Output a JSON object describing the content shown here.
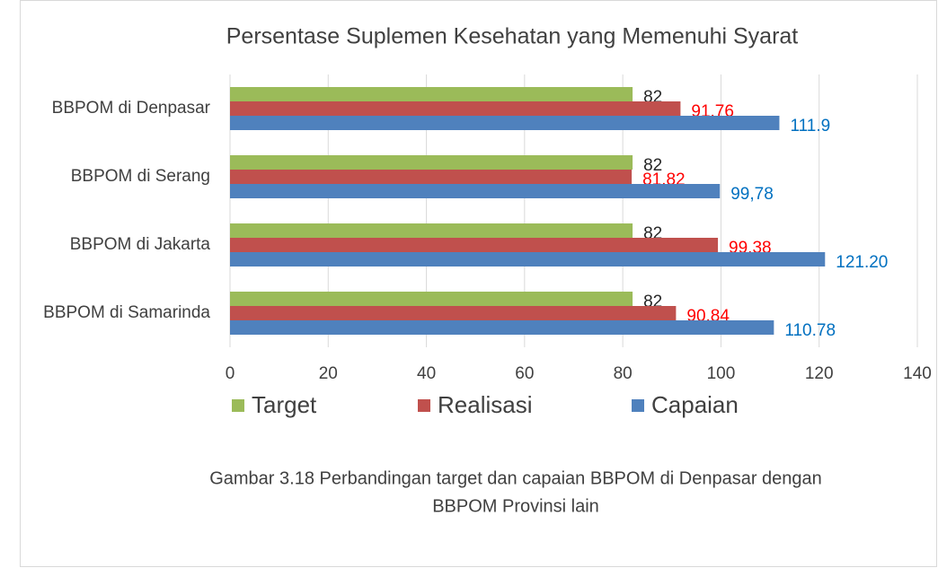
{
  "chart_data": {
    "type": "hbar",
    "title": "Persentase Suplemen Kesehatan yang Memenuhi Syarat",
    "categories": [
      "BBPOM di Denpasar",
      "BBPOM di Serang",
      "BBPOM di Jakarta",
      "BBPOM di Samarinda"
    ],
    "series": [
      {
        "name": "Target",
        "color": "#9bbb59",
        "label_color": "#262626",
        "values": [
          82,
          82,
          82,
          82
        ]
      },
      {
        "name": "Realisasi",
        "color": "#c0504d",
        "label_color": "#ff0000",
        "values": [
          91.76,
          81.82,
          99.38,
          90.84
        ]
      },
      {
        "name": "Capaian",
        "color": "#4f81bd",
        "label_color": "#0070c0",
        "values": [
          111.9,
          99.78,
          121.2,
          110.78
        ],
        "value_labels": [
          "111.9",
          "99,78",
          "121.20",
          "110.78"
        ]
      }
    ],
    "xlim": [
      0,
      140
    ],
    "xticks": [
      0,
      20,
      40,
      60,
      80,
      100,
      120,
      140
    ],
    "grid": true,
    "legend": "bottom",
    "caption": [
      "Gambar 3.18 Perbandingan target dan capaian BBPOM di Denpasar dengan",
      "BBPOM Provinsi lain"
    ]
  }
}
